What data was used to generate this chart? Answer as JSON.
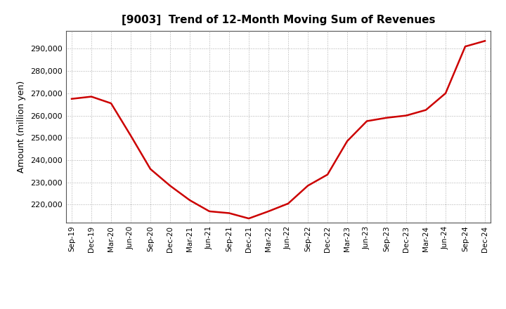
{
  "title": "[9003]  Trend of 12-Month Moving Sum of Revenues",
  "ylabel": "Amount (million yen)",
  "line_color": "#cc0000",
  "line_width": 1.8,
  "background_color": "#ffffff",
  "grid_color": "#999999",
  "tick_labels": [
    "Sep-19",
    "Dec-19",
    "Mar-20",
    "Jun-20",
    "Sep-20",
    "Dec-20",
    "Mar-21",
    "Jun-21",
    "Sep-21",
    "Dec-21",
    "Mar-22",
    "Jun-22",
    "Sep-22",
    "Dec-22",
    "Mar-23",
    "Jun-23",
    "Sep-23",
    "Dec-23",
    "Mar-24",
    "Jun-24",
    "Sep-24",
    "Dec-24"
  ],
  "values": [
    267500,
    268500,
    265500,
    251000,
    236000,
    228500,
    222000,
    217000,
    216200,
    213800,
    217000,
    220500,
    228500,
    233500,
    248500,
    257500,
    259000,
    260000,
    262500,
    270000,
    291000,
    293500
  ],
  "ylim": [
    212000,
    298000
  ],
  "yticks": [
    220000,
    230000,
    240000,
    250000,
    260000,
    270000,
    280000,
    290000
  ]
}
